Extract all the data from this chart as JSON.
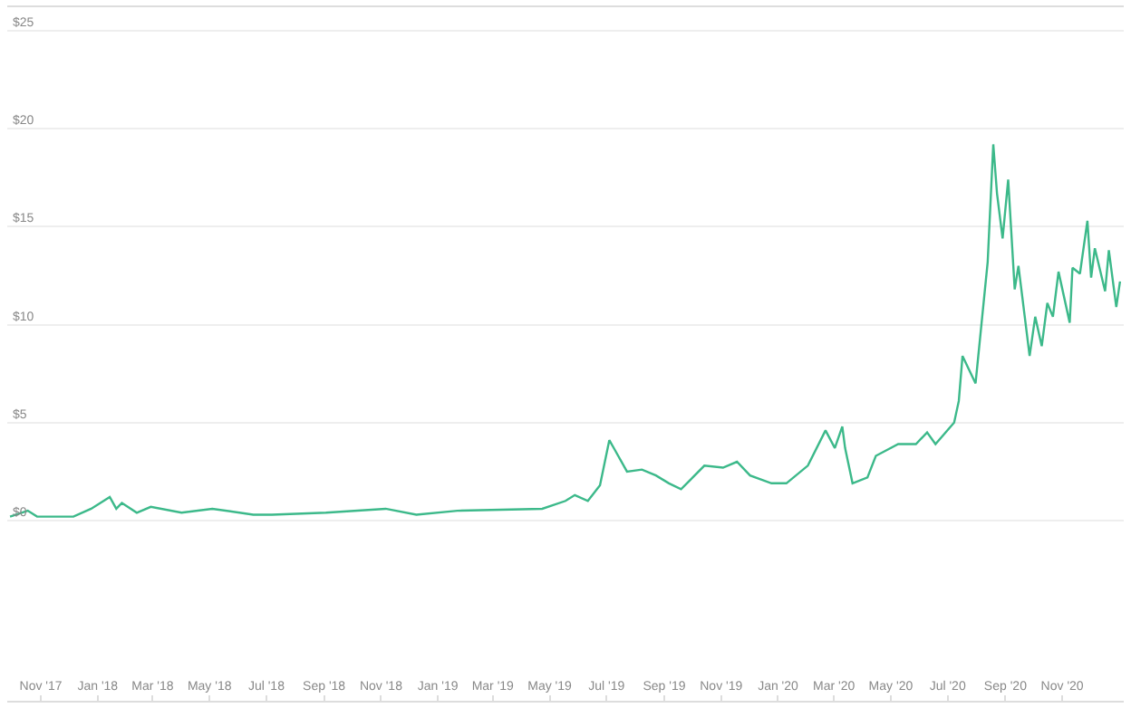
{
  "chart_data": {
    "type": "line",
    "x": [
      "2017-09-29",
      "2017-10-18",
      "2017-10-28",
      "2017-12-06",
      "2017-12-25",
      "2018-01-14",
      "2018-01-21",
      "2018-01-27",
      "2018-02-12",
      "2018-02-27",
      "2018-04-01",
      "2018-05-04",
      "2018-06-17",
      "2018-07-07",
      "2018-09-03",
      "2018-11-06",
      "2018-12-09",
      "2019-01-22",
      "2019-04-23",
      "2019-05-18",
      "2019-05-28",
      "2019-06-11",
      "2019-06-24",
      "2019-07-04",
      "2019-07-10",
      "2019-07-23",
      "2019-08-08",
      "2019-08-23",
      "2019-09-06",
      "2019-09-19",
      "2019-10-14",
      "2019-11-03",
      "2019-11-18",
      "2019-12-02",
      "2019-12-25",
      "2020-01-10",
      "2020-02-02",
      "2020-02-21",
      "2020-03-02",
      "2020-03-10",
      "2020-03-13",
      "2020-03-21",
      "2020-04-06",
      "2020-04-15",
      "2020-05-09",
      "2020-05-28",
      "2020-06-09",
      "2020-06-18",
      "2020-07-08",
      "2020-07-13",
      "2020-07-17",
      "2020-07-31",
      "2020-08-13",
      "2020-08-19",
      "2020-08-23",
      "2020-08-29",
      "2020-09-04",
      "2020-09-11",
      "2020-09-15",
      "2020-09-27",
      "2020-10-03",
      "2020-10-10",
      "2020-10-16",
      "2020-10-22",
      "2020-10-28",
      "2020-11-09",
      "2020-11-12",
      "2020-11-20",
      "2020-11-28",
      "2020-12-02",
      "2020-12-06",
      "2020-12-17",
      "2020-12-21",
      "2020-12-29",
      "2021-01-02"
    ],
    "series": [
      {
        "color": "#3cb98a",
        "values": [
          0.2,
          0.5,
          0.2,
          0.2,
          0.6,
          1.2,
          0.6,
          0.9,
          0.4,
          0.7,
          0.4,
          0.6,
          0.3,
          0.3,
          0.4,
          0.6,
          0.3,
          0.5,
          0.6,
          1.0,
          1.3,
          1.0,
          1.8,
          4.1,
          3.6,
          2.5,
          2.6,
          2.3,
          1.9,
          1.6,
          2.8,
          2.7,
          3.0,
          2.3,
          1.9,
          1.9,
          2.8,
          4.6,
          3.7,
          4.8,
          3.7,
          1.9,
          2.2,
          3.3,
          3.9,
          3.9,
          4.5,
          3.9,
          5.0,
          6.1,
          8.4,
          7.0,
          13.2,
          19.2,
          16.7,
          14.4,
          17.4,
          11.8,
          13.0,
          8.4,
          10.4,
          8.9,
          11.1,
          10.4,
          12.7,
          10.1,
          12.9,
          12.6,
          15.3,
          12.4,
          13.9,
          11.7,
          13.8,
          10.9,
          12.2
        ]
      }
    ],
    "xlim": [
      "2017-09-26",
      "2021-01-06"
    ],
    "xticks": [
      {
        "value": "2017-11-01",
        "label": "Nov '17"
      },
      {
        "value": "2018-01-01",
        "label": "Jan '18"
      },
      {
        "value": "2018-03-01",
        "label": "Mar '18"
      },
      {
        "value": "2018-05-01",
        "label": "May '18"
      },
      {
        "value": "2018-07-01",
        "label": "Jul '18"
      },
      {
        "value": "2018-09-01",
        "label": "Sep '18"
      },
      {
        "value": "2018-11-01",
        "label": "Nov '18"
      },
      {
        "value": "2019-01-01",
        "label": "Jan '19"
      },
      {
        "value": "2019-03-01",
        "label": "Mar '19"
      },
      {
        "value": "2019-05-01",
        "label": "May '19"
      },
      {
        "value": "2019-07-01",
        "label": "Jul '19"
      },
      {
        "value": "2019-09-01",
        "label": "Sep '19"
      },
      {
        "value": "2019-11-01",
        "label": "Nov '19"
      },
      {
        "value": "2020-01-01",
        "label": "Jan '20"
      },
      {
        "value": "2020-03-01",
        "label": "Mar '20"
      },
      {
        "value": "2020-05-01",
        "label": "May '20"
      },
      {
        "value": "2020-07-01",
        "label": "Jul '20"
      },
      {
        "value": "2020-09-01",
        "label": "Sep '20"
      },
      {
        "value": "2020-11-01",
        "label": "Nov '20"
      }
    ],
    "ylim": [
      -9.2,
      26.2
    ],
    "yticks": [
      {
        "value": 0,
        "label": "$0"
      },
      {
        "value": 5,
        "label": "$5"
      },
      {
        "value": 10,
        "label": "$10"
      },
      {
        "value": 15,
        "label": "$15"
      },
      {
        "value": 20,
        "label": "$20"
      },
      {
        "value": 25,
        "label": "$25"
      }
    ],
    "grid": "y",
    "marker": "none",
    "line_style": "solid"
  }
}
